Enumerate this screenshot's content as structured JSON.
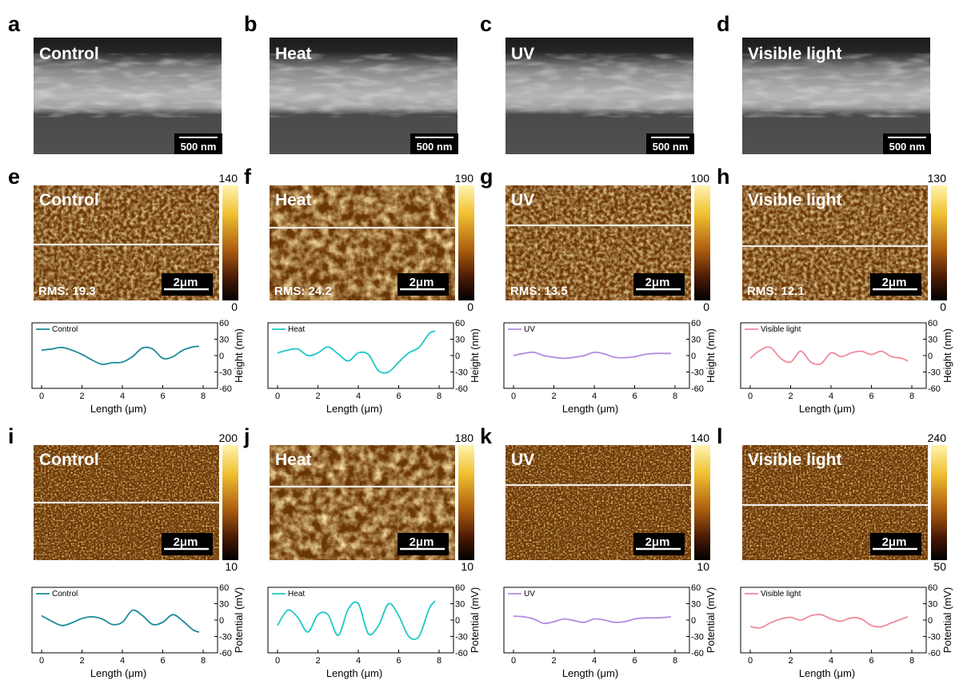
{
  "panel_labels": [
    "a",
    "b",
    "c",
    "d",
    "e",
    "f",
    "g",
    "h",
    "i",
    "j",
    "k",
    "l"
  ],
  "conditions": [
    "Control",
    "Heat",
    "UV",
    "Visible light"
  ],
  "series_colors": [
    "#1b8a96",
    "#1ec8c8",
    "#b38be0",
    "#f08a9a"
  ],
  "sem": {
    "scale_bar": "500 nm"
  },
  "afm": {
    "rms": [
      "RMS: 19.3",
      "RMS: 24.2",
      "RMS: 13.5",
      "RMS: 12.1"
    ],
    "cb_max": [
      "140",
      "190",
      "100",
      "130"
    ],
    "cb_min": [
      "0",
      "0",
      "0",
      "0"
    ],
    "scale_bar": "2μm"
  },
  "kpfm": {
    "cb_max": [
      "200",
      "180",
      "140",
      "240"
    ],
    "cb_min": [
      "10",
      "10",
      "10",
      "50"
    ],
    "scale_bar": "2μm"
  },
  "chart_data": [
    {
      "type": "line",
      "panels": "e-h profiles",
      "xlabel": "Length (μm)",
      "ylabel": "Height (nm)",
      "xlim": [
        0,
        8
      ],
      "ylim": [
        -60,
        60
      ],
      "xticks": [
        0,
        2,
        4,
        6,
        8
      ],
      "yticks": [
        60,
        30,
        0,
        -30,
        -60
      ],
      "series": [
        {
          "name": "Control",
          "x": [
            0,
            0.5,
            1,
            1.5,
            2,
            2.5,
            3,
            3.5,
            4,
            4.5,
            5,
            5.5,
            6,
            6.5,
            7,
            7.5,
            7.8
          ],
          "values": [
            10,
            12,
            15,
            10,
            2,
            -8,
            -16,
            -13,
            -12,
            -2,
            14,
            12,
            -5,
            -2,
            10,
            16,
            17
          ]
        },
        {
          "name": "Heat",
          "x": [
            0,
            0.5,
            1,
            1.5,
            2,
            2.5,
            3,
            3.5,
            4,
            4.5,
            5,
            5.5,
            6,
            6.5,
            7,
            7.5,
            7.8
          ],
          "values": [
            5,
            10,
            12,
            0,
            5,
            16,
            3,
            -10,
            5,
            2,
            -28,
            -30,
            -12,
            5,
            15,
            40,
            45
          ]
        },
        {
          "name": "UV",
          "x": [
            0,
            0.5,
            1,
            1.5,
            2,
            2.5,
            3,
            3.5,
            4,
            4.5,
            5,
            5.5,
            6,
            6.5,
            7,
            7.5,
            7.8
          ],
          "values": [
            0,
            4,
            6,
            0,
            -3,
            -5,
            -3,
            0,
            6,
            3,
            -3,
            -4,
            -2,
            2,
            4,
            4,
            4
          ]
        },
        {
          "name": "Visible light",
          "x": [
            0,
            0.5,
            1,
            1.5,
            2,
            2.5,
            3,
            3.5,
            4,
            4.5,
            5,
            5.5,
            6,
            6.5,
            7,
            7.5,
            7.8
          ],
          "values": [
            -5,
            10,
            15,
            -5,
            -12,
            8,
            -12,
            -15,
            5,
            -2,
            5,
            8,
            2,
            8,
            -2,
            -5,
            -10
          ]
        }
      ]
    },
    {
      "type": "line",
      "panels": "i-l profiles",
      "xlabel": "Length (μm)",
      "ylabel": "Potential (mV)",
      "xlim": [
        0,
        8
      ],
      "ylim": [
        -60,
        60
      ],
      "xticks": [
        0,
        2,
        4,
        6,
        8
      ],
      "yticks": [
        60,
        30,
        0,
        -30,
        -60
      ],
      "series": [
        {
          "name": "Control",
          "x": [
            0,
            0.5,
            1,
            1.5,
            2,
            2.5,
            3,
            3.5,
            4,
            4.5,
            5,
            5.5,
            6,
            6.5,
            7,
            7.5,
            7.8
          ],
          "values": [
            8,
            -2,
            -10,
            -5,
            3,
            6,
            2,
            -8,
            -4,
            18,
            8,
            -8,
            -4,
            10,
            -2,
            -18,
            -22
          ]
        },
        {
          "name": "Heat",
          "x": [
            0,
            0.5,
            1,
            1.5,
            2,
            2.5,
            3,
            3.5,
            4,
            4.5,
            5,
            5.5,
            6,
            6.5,
            7,
            7.5,
            7.8
          ],
          "values": [
            -10,
            18,
            5,
            -22,
            10,
            10,
            -28,
            20,
            30,
            -25,
            -10,
            30,
            8,
            -30,
            -30,
            20,
            35
          ]
        },
        {
          "name": "UV",
          "x": [
            0,
            0.5,
            1,
            1.5,
            2,
            2.5,
            3,
            3.5,
            4,
            4.5,
            5,
            5.5,
            6,
            6.5,
            7,
            7.5,
            7.8
          ],
          "values": [
            7,
            6,
            2,
            -6,
            -3,
            2,
            -1,
            -4,
            2,
            0,
            -4,
            -3,
            2,
            4,
            4,
            5,
            6
          ]
        },
        {
          "name": "Visible light",
          "x": [
            0,
            0.5,
            1,
            1.5,
            2,
            2.5,
            3,
            3.5,
            4,
            4.5,
            5,
            5.5,
            6,
            6.5,
            7,
            7.5,
            7.8
          ],
          "values": [
            -12,
            -14,
            -5,
            2,
            5,
            0,
            8,
            10,
            2,
            -2,
            4,
            2,
            -10,
            -12,
            -5,
            2,
            6
          ]
        }
      ]
    }
  ]
}
